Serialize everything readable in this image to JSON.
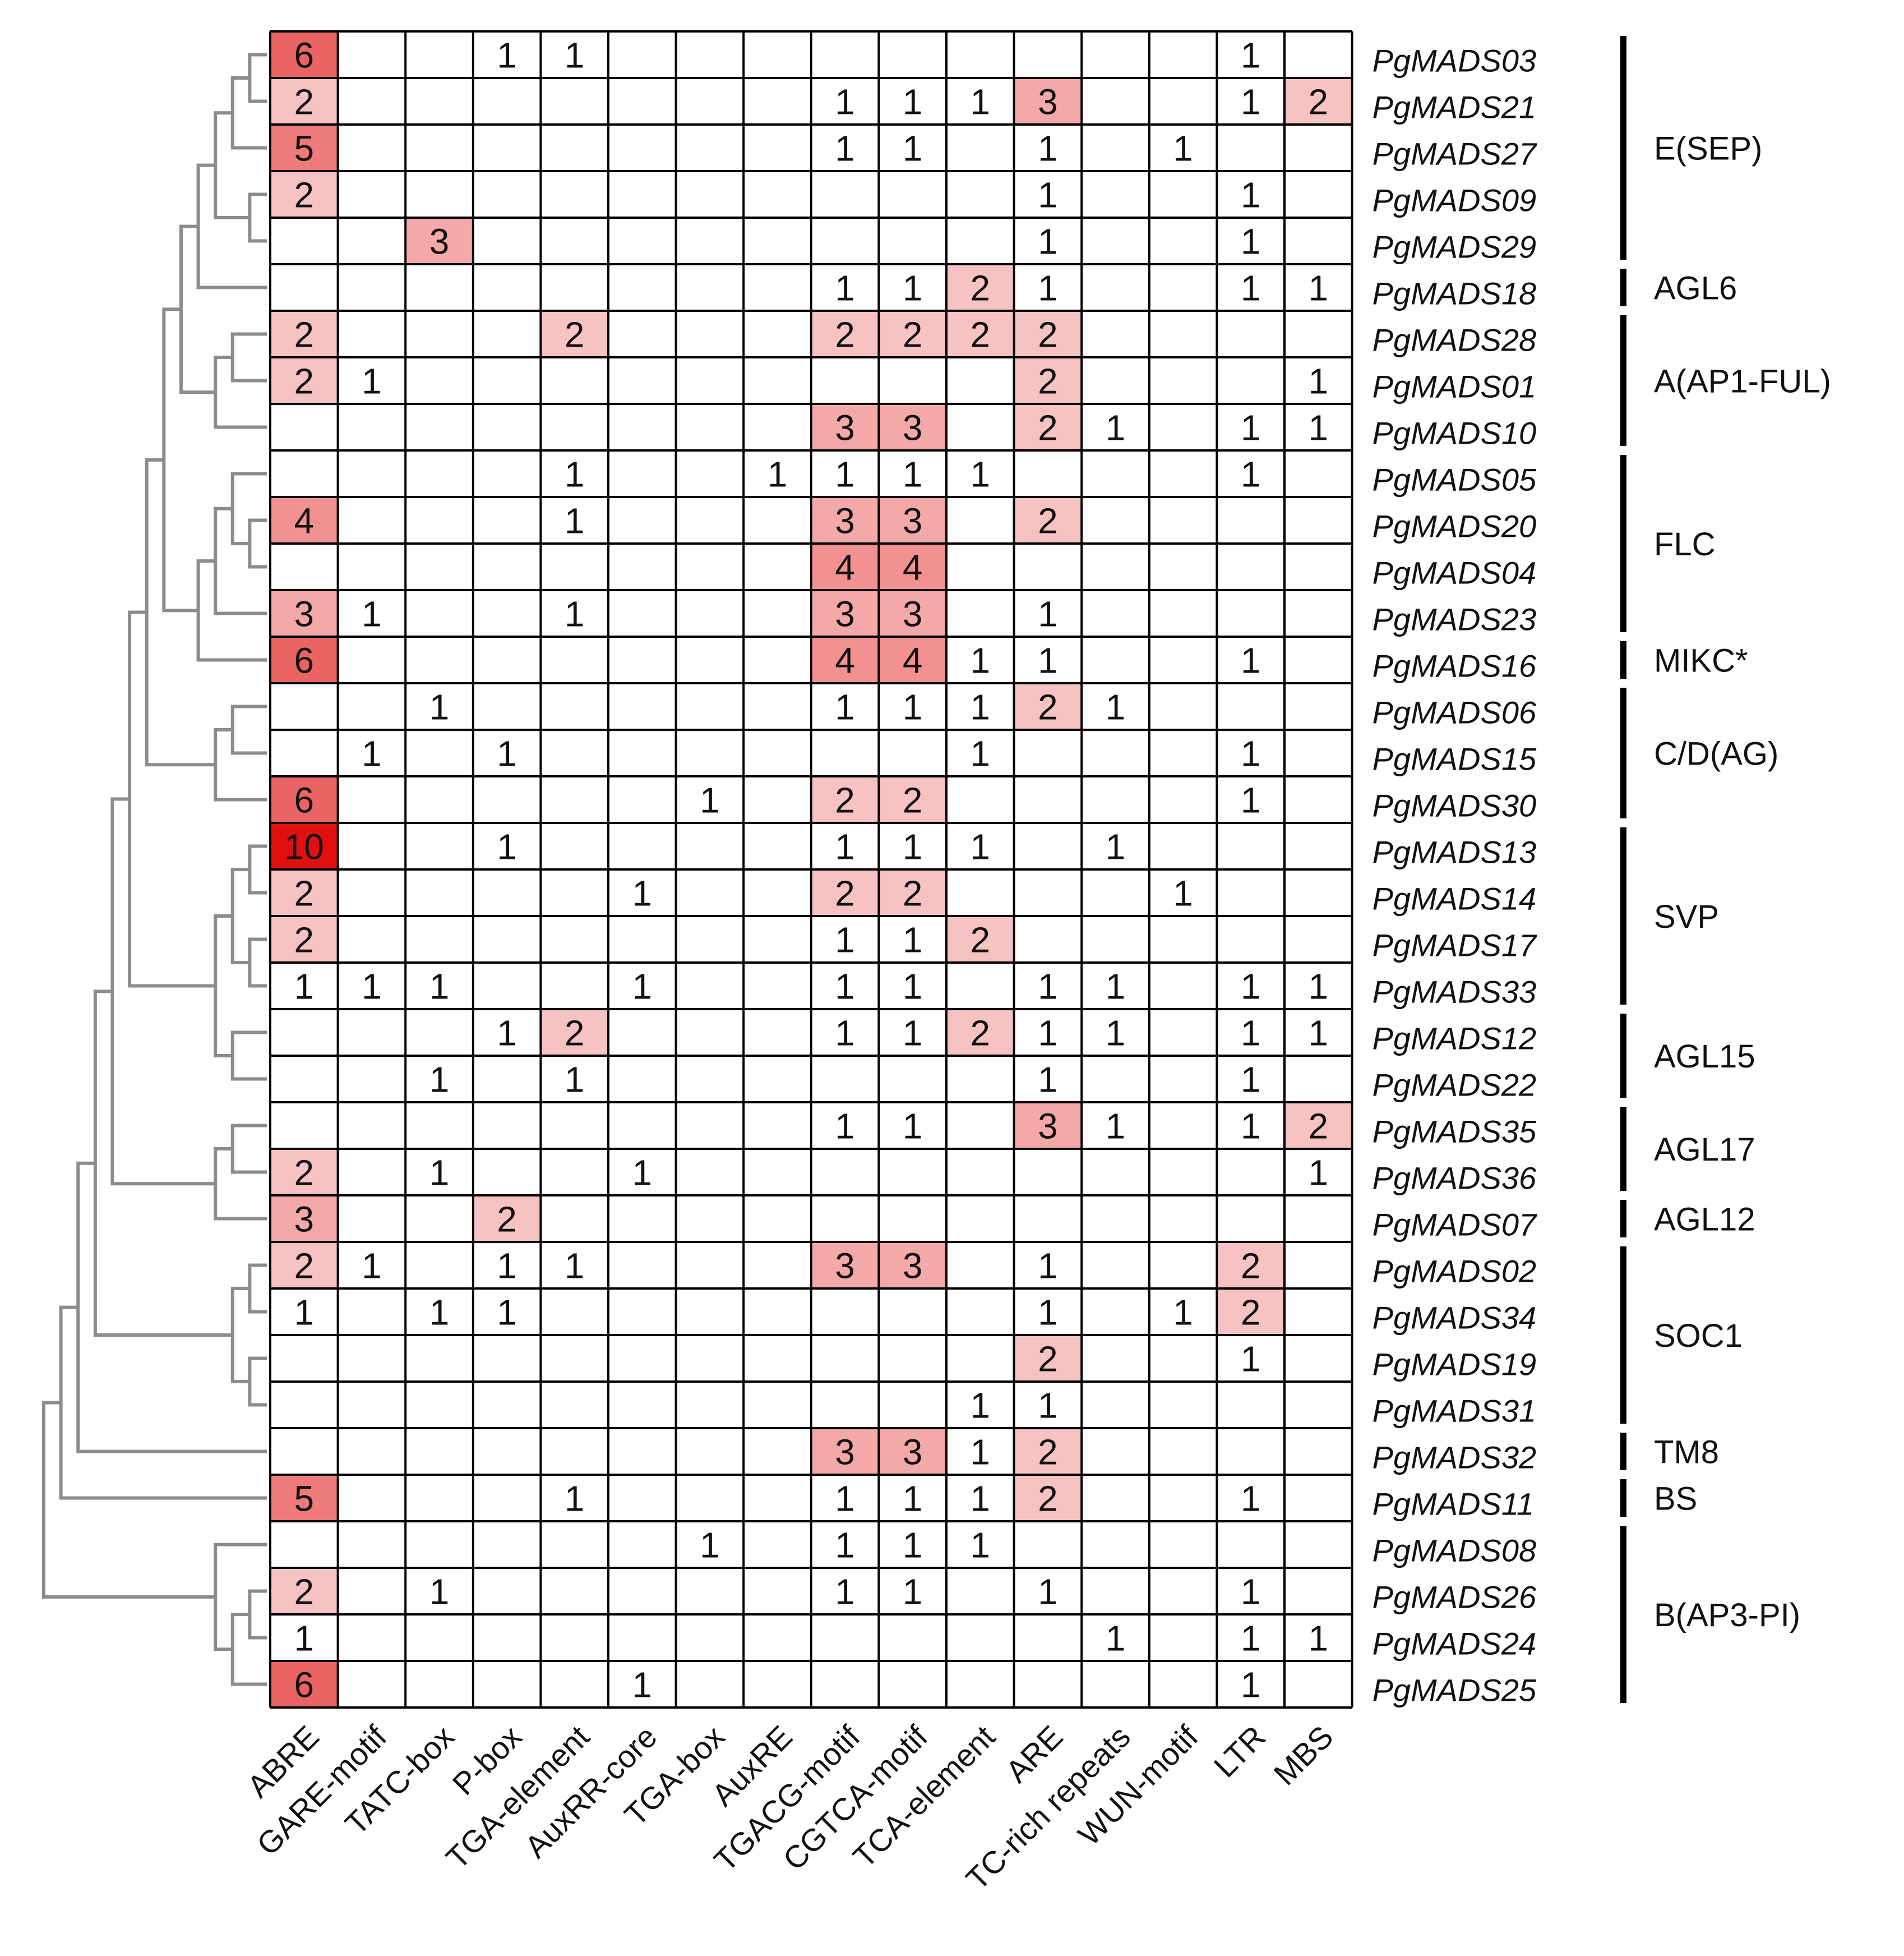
{
  "chart_data": {
    "type": "heatmap",
    "title": "",
    "colors": {
      "low": "#ffffff",
      "high": "#e01010",
      "grid": "#000000",
      "tree": "#8c8c8c",
      "group_bar": "#000000"
    },
    "value_range": [
      0,
      10
    ],
    "columns": [
      "ABRE",
      "GARE-motif",
      "TATC-box",
      "P-box",
      "TGA-element",
      "AuxRR-core",
      "TGA-box",
      "AuxRE",
      "TGACG-motif",
      "CGTCA-motif",
      "TCA-element",
      "ARE",
      "TC-rich repeats",
      "WUN-motif",
      "LTR",
      "MBS"
    ],
    "rows": [
      "PgMADS03",
      "PgMADS21",
      "PgMADS27",
      "PgMADS09",
      "PgMADS29",
      "PgMADS18",
      "PgMADS28",
      "PgMADS01",
      "PgMADS10",
      "PgMADS05",
      "PgMADS20",
      "PgMADS04",
      "PgMADS23",
      "PgMADS16",
      "PgMADS06",
      "PgMADS15",
      "PgMADS30",
      "PgMADS13",
      "PgMADS14",
      "PgMADS17",
      "PgMADS33",
      "PgMADS12",
      "PgMADS22",
      "PgMADS35",
      "PgMADS36",
      "PgMADS07",
      "PgMADS02",
      "PgMADS34",
      "PgMADS19",
      "PgMADS31",
      "PgMADS32",
      "PgMADS11",
      "PgMADS08",
      "PgMADS26",
      "PgMADS24",
      "PgMADS25"
    ],
    "values": [
      [
        6,
        0,
        0,
        1,
        1,
        0,
        0,
        0,
        0,
        0,
        0,
        0,
        0,
        0,
        1,
        0
      ],
      [
        2,
        0,
        0,
        0,
        0,
        0,
        0,
        0,
        1,
        1,
        1,
        3,
        0,
        0,
        1,
        2
      ],
      [
        5,
        0,
        0,
        0,
        0,
        0,
        0,
        0,
        1,
        1,
        0,
        1,
        0,
        1,
        0,
        0
      ],
      [
        2,
        0,
        0,
        0,
        0,
        0,
        0,
        0,
        0,
        0,
        0,
        1,
        0,
        0,
        1,
        0
      ],
      [
        0,
        0,
        3,
        0,
        0,
        0,
        0,
        0,
        0,
        0,
        0,
        1,
        0,
        0,
        1,
        0
      ],
      [
        0,
        0,
        0,
        0,
        0,
        0,
        0,
        0,
        1,
        1,
        2,
        1,
        0,
        0,
        1,
        1
      ],
      [
        2,
        0,
        0,
        0,
        2,
        0,
        0,
        0,
        2,
        2,
        2,
        2,
        0,
        0,
        0,
        0
      ],
      [
        2,
        1,
        0,
        0,
        0,
        0,
        0,
        0,
        0,
        0,
        0,
        2,
        0,
        0,
        0,
        1
      ],
      [
        0,
        0,
        0,
        0,
        0,
        0,
        0,
        0,
        3,
        3,
        0,
        2,
        1,
        0,
        1,
        1
      ],
      [
        0,
        0,
        0,
        0,
        1,
        0,
        0,
        1,
        1,
        1,
        1,
        0,
        0,
        0,
        1,
        0
      ],
      [
        4,
        0,
        0,
        0,
        1,
        0,
        0,
        0,
        3,
        3,
        0,
        2,
        0,
        0,
        0,
        0
      ],
      [
        0,
        0,
        0,
        0,
        0,
        0,
        0,
        0,
        4,
        4,
        0,
        0,
        0,
        0,
        0,
        0
      ],
      [
        3,
        1,
        0,
        0,
        1,
        0,
        0,
        0,
        3,
        3,
        0,
        1,
        0,
        0,
        0,
        0
      ],
      [
        6,
        0,
        0,
        0,
        0,
        0,
        0,
        0,
        4,
        4,
        1,
        1,
        0,
        0,
        1,
        0
      ],
      [
        0,
        0,
        1,
        0,
        0,
        0,
        0,
        0,
        1,
        1,
        1,
        2,
        1,
        0,
        0,
        0
      ],
      [
        0,
        1,
        0,
        1,
        0,
        0,
        0,
        0,
        0,
        0,
        1,
        0,
        0,
        0,
        1,
        0
      ],
      [
        6,
        0,
        0,
        0,
        0,
        0,
        1,
        0,
        2,
        2,
        0,
        0,
        0,
        0,
        1,
        0
      ],
      [
        10,
        0,
        0,
        1,
        0,
        0,
        0,
        0,
        1,
        1,
        1,
        0,
        1,
        0,
        0,
        0
      ],
      [
        2,
        0,
        0,
        0,
        0,
        1,
        0,
        0,
        2,
        2,
        0,
        0,
        0,
        1,
        0,
        0
      ],
      [
        2,
        0,
        0,
        0,
        0,
        0,
        0,
        0,
        1,
        1,
        2,
        0,
        0,
        0,
        0,
        0
      ],
      [
        1,
        1,
        1,
        0,
        0,
        1,
        0,
        0,
        1,
        1,
        0,
        1,
        1,
        0,
        1,
        1
      ],
      [
        0,
        0,
        0,
        1,
        2,
        0,
        0,
        0,
        1,
        1,
        2,
        1,
        1,
        0,
        1,
        1
      ],
      [
        0,
        0,
        1,
        0,
        1,
        0,
        0,
        0,
        0,
        0,
        0,
        1,
        0,
        0,
        1,
        0
      ],
      [
        0,
        0,
        0,
        0,
        0,
        0,
        0,
        0,
        1,
        1,
        0,
        3,
        1,
        0,
        1,
        2
      ],
      [
        2,
        0,
        1,
        0,
        0,
        1,
        0,
        0,
        0,
        0,
        0,
        0,
        0,
        0,
        0,
        1
      ],
      [
        3,
        0,
        0,
        2,
        0,
        0,
        0,
        0,
        0,
        0,
        0,
        0,
        0,
        0,
        0,
        0
      ],
      [
        2,
        1,
        0,
        1,
        1,
        0,
        0,
        0,
        3,
        3,
        0,
        1,
        0,
        0,
        2,
        0
      ],
      [
        1,
        0,
        1,
        1,
        0,
        0,
        0,
        0,
        0,
        0,
        0,
        1,
        0,
        1,
        2,
        0
      ],
      [
        0,
        0,
        0,
        0,
        0,
        0,
        0,
        0,
        0,
        0,
        0,
        2,
        0,
        0,
        1,
        0
      ],
      [
        0,
        0,
        0,
        0,
        0,
        0,
        0,
        0,
        0,
        0,
        1,
        1,
        0,
        0,
        0,
        0
      ],
      [
        0,
        0,
        0,
        0,
        0,
        0,
        0,
        0,
        3,
        3,
        1,
        2,
        0,
        0,
        0,
        0
      ],
      [
        5,
        0,
        0,
        0,
        1,
        0,
        0,
        0,
        1,
        1,
        1,
        2,
        0,
        0,
        1,
        0
      ],
      [
        0,
        0,
        0,
        0,
        0,
        0,
        1,
        0,
        1,
        1,
        1,
        0,
        0,
        0,
        0,
        0
      ],
      [
        2,
        0,
        1,
        0,
        0,
        0,
        0,
        0,
        1,
        1,
        0,
        1,
        0,
        0,
        1,
        0
      ],
      [
        1,
        0,
        0,
        0,
        0,
        0,
        0,
        0,
        0,
        0,
        0,
        0,
        1,
        0,
        1,
        1
      ],
      [
        6,
        0,
        0,
        0,
        0,
        1,
        0,
        0,
        0,
        0,
        0,
        0,
        0,
        0,
        1,
        0
      ]
    ],
    "groups": [
      {
        "label": "E(SEP)",
        "rows": [
          0,
          4
        ]
      },
      {
        "label": "AGL6",
        "rows": [
          5,
          5
        ]
      },
      {
        "label": "A(AP1-FUL)",
        "rows": [
          6,
          8
        ]
      },
      {
        "label": "FLC",
        "rows": [
          9,
          12
        ]
      },
      {
        "label": "MIKC*",
        "rows": [
          13,
          13
        ]
      },
      {
        "label": "C/D(AG)",
        "rows": [
          14,
          16
        ]
      },
      {
        "label": "SVP",
        "rows": [
          17,
          20
        ]
      },
      {
        "label": "AGL15",
        "rows": [
          21,
          22
        ]
      },
      {
        "label": "AGL17",
        "rows": [
          23,
          24
        ]
      },
      {
        "label": "AGL12",
        "rows": [
          25,
          25
        ]
      },
      {
        "label": "SOC1",
        "rows": [
          26,
          29
        ]
      },
      {
        "label": "TM8",
        "rows": [
          30,
          30
        ]
      },
      {
        "label": "BS",
        "rows": [
          31,
          31
        ]
      },
      {
        "label": "B(AP3-PI)",
        "rows": [
          32,
          35
        ]
      }
    ],
    "dendrogram": {
      "leaf_order": "rows",
      "merges": [
        [
          0,
          1
        ],
        [
          36,
          2
        ],
        [
          3,
          4
        ],
        [
          37,
          38
        ],
        [
          39,
          5
        ],
        [
          6,
          7
        ],
        [
          41,
          8
        ],
        [
          40,
          42
        ],
        [
          10,
          11
        ],
        [
          9,
          44
        ],
        [
          45,
          12
        ],
        [
          46,
          13
        ],
        [
          43,
          47
        ],
        [
          14,
          15
        ],
        [
          49,
          16
        ],
        [
          48,
          50
        ],
        [
          17,
          18
        ],
        [
          19,
          20
        ],
        [
          52,
          53
        ],
        [
          21,
          22
        ],
        [
          54,
          55
        ],
        [
          51,
          56
        ],
        [
          23,
          24
        ],
        [
          58,
          25
        ],
        [
          57,
          59
        ],
        [
          26,
          27
        ],
        [
          28,
          29
        ],
        [
          61,
          62
        ],
        [
          60,
          63
        ],
        [
          64,
          30
        ],
        [
          65,
          31
        ],
        [
          33,
          34
        ],
        [
          67,
          35
        ],
        [
          32,
          68
        ],
        [
          66,
          69
        ]
      ],
      "heights": [
        1,
        2,
        1,
        3,
        4,
        2,
        3,
        5,
        1,
        2,
        3,
        4,
        6,
        2,
        3,
        7,
        1,
        1,
        2,
        2,
        3,
        8,
        2,
        3,
        9,
        1,
        1,
        2,
        10,
        11,
        12,
        1,
        2,
        3,
        13
      ]
    }
  }
}
